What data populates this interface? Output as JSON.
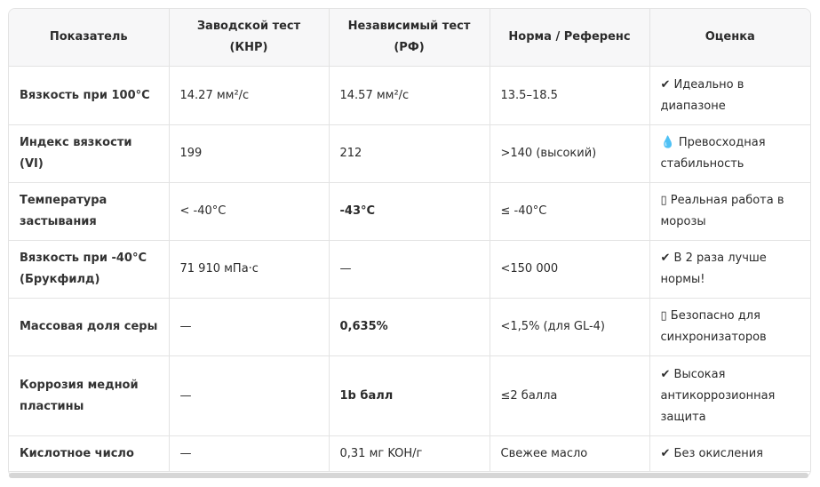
{
  "table": {
    "header": [
      "Показатель",
      "Заводской тест (КНР)",
      "Независимый тест (РФ)",
      "Норма / Референс",
      "Оценка"
    ],
    "rows": [
      [
        "Вязкость при 100°C",
        "14.27 мм²/с",
        "14.57 мм²/с",
        "13.5–18.5",
        "✔ Идеально в диапазоне"
      ],
      [
        "Индекс вязкости (VI)",
        "199",
        "212",
        ">140 (высокий)",
        "💧 Превосходная стабильность"
      ],
      [
        "Температура застывания",
        "< -40°C",
        "-43°C",
        "≤ -40°C",
        "▯ Реальная работа в морозы"
      ],
      [
        "Вязкость при -40°C (Брукфилд)",
        "71 910 мПа·с",
        "—",
        "<150 000",
        "✔ В 2 раза лучше нормы!"
      ],
      [
        "Массовая доля серы",
        "—",
        "0,635%",
        "<1,5% (для GL-4)",
        "▯ Безопасно для синхронизаторов"
      ],
      [
        "Коррозия медной пластины",
        "—",
        "1b балл",
        "≤2 балла",
        "✔ Высокая антикоррозионная защита"
      ],
      [
        "Кислотное число",
        "—",
        "0,31 мг KOH/г",
        "Свежее масло",
        "✔ Без окисления"
      ]
    ]
  }
}
